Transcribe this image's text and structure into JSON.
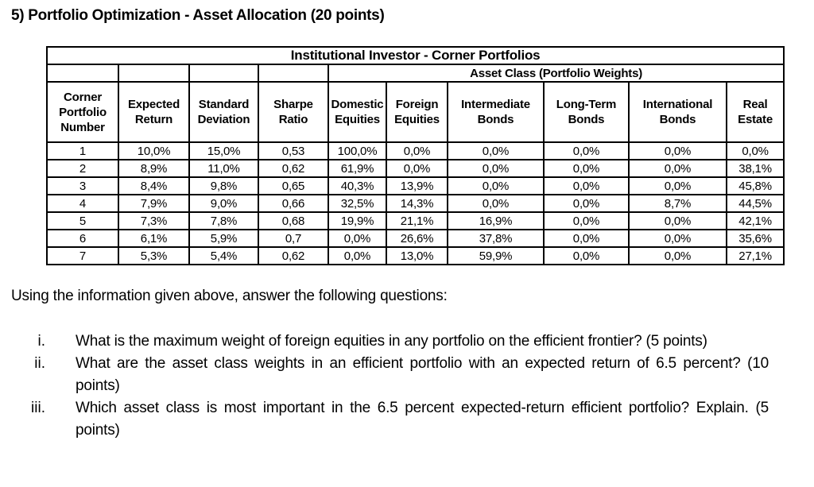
{
  "page": {
    "heading": "5) Portfolio Optimization - Asset Allocation (20 points)",
    "intro": "Using the information given above, answer the following questions:",
    "questions": [
      {
        "marker": "i.",
        "text": "What is the maximum weight of foreign equities in any portfolio on the efficient frontier? (5 points)"
      },
      {
        "marker": "ii.",
        "text": "What are the asset class weights in an efficient portfolio with an expected return of 6.5 percent? (10 points)"
      },
      {
        "marker": "iii.",
        "text": "Which asset class is most important in the 6.5 percent expected-return efficient portfolio? Explain. (5 points)"
      }
    ]
  },
  "table": {
    "title": "Institutional Investor - Corner Portfolios",
    "group_header": "Asset Class (Portfolio Weights)",
    "columns": [
      "Corner Portfolio Number",
      "Expected Return",
      "Standard Deviation",
      "Sharpe Ratio",
      "Domestic Equities",
      "Foreign Equities",
      "Intermediate Bonds",
      "Long-Term Bonds",
      "International Bonds",
      "Real Estate"
    ],
    "rows": [
      [
        "1",
        "10,0%",
        "15,0%",
        "0,53",
        "100,0%",
        "0,0%",
        "0,0%",
        "0,0%",
        "0,0%",
        "0,0%"
      ],
      [
        "2",
        "8,9%",
        "11,0%",
        "0,62",
        "61,9%",
        "0,0%",
        "0,0%",
        "0,0%",
        "0,0%",
        "38,1%"
      ],
      [
        "3",
        "8,4%",
        "9,8%",
        "0,65",
        "40,3%",
        "13,9%",
        "0,0%",
        "0,0%",
        "0,0%",
        "45,8%"
      ],
      [
        "4",
        "7,9%",
        "9,0%",
        "0,66",
        "32,5%",
        "14,3%",
        "0,0%",
        "0,0%",
        "8,7%",
        "44,5%"
      ],
      [
        "5",
        "7,3%",
        "7,8%",
        "0,68",
        "19,9%",
        "21,1%",
        "16,9%",
        "0,0%",
        "0,0%",
        "42,1%"
      ],
      [
        "6",
        "6,1%",
        "5,9%",
        "0,7",
        "0,0%",
        "26,6%",
        "37,8%",
        "0,0%",
        "0,0%",
        "35,6%"
      ],
      [
        "7",
        "5,3%",
        "5,4%",
        "0,62",
        "0,0%",
        "13,0%",
        "59,9%",
        "0,0%",
        "0,0%",
        "27,1%"
      ]
    ]
  },
  "colors": {
    "text": "#000000",
    "table_border": "#000000",
    "light_divider": "#c9d2de",
    "background": "#ffffff"
  }
}
